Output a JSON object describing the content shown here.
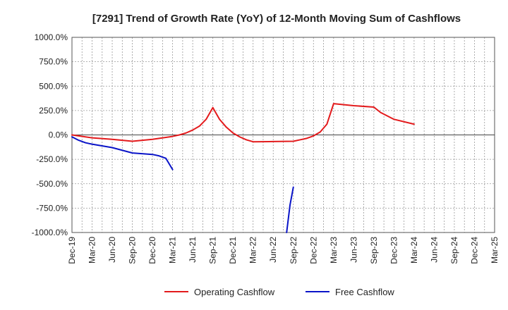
{
  "chart_data": {
    "type": "line",
    "title": "[7291]  Trend of Growth Rate (YoY) of 12-Month Moving Sum of Cashflows",
    "xlabel": "",
    "ylabel": "",
    "ylim": [
      -1000,
      1000
    ],
    "yticks": [
      1000,
      750,
      500,
      250,
      0,
      -250,
      -500,
      -750,
      -1000
    ],
    "ytick_labels": [
      "1000.0%",
      "750.0%",
      "500.0%",
      "250.0%",
      "0.0%",
      "-250.0%",
      "-500.0%",
      "-750.0%",
      "-1000.0%"
    ],
    "x_start": "2019-12",
    "x_end": "2025-03",
    "xtick_labels": [
      "Dec-19",
      "Mar-20",
      "Jun-20",
      "Sep-20",
      "Dec-20",
      "Mar-21",
      "Jun-21",
      "Sep-21",
      "Dec-21",
      "Mar-22",
      "Jun-22",
      "Sep-22",
      "Dec-22",
      "Mar-23",
      "Jun-23",
      "Sep-23",
      "Dec-23",
      "Mar-24",
      "Jun-24",
      "Sep-24",
      "Dec-24",
      "Mar-25"
    ],
    "grid": true,
    "legend_position": "bottom",
    "series": [
      {
        "name": "Operating Cashflow",
        "color": "#e31a1c",
        "points": [
          [
            "2019-12",
            0
          ],
          [
            "2020-01",
            -10
          ],
          [
            "2020-02",
            -20
          ],
          [
            "2020-03",
            -30
          ],
          [
            "2020-06",
            -45
          ],
          [
            "2020-09",
            -65
          ],
          [
            "2020-12",
            -45
          ],
          [
            "2021-03",
            -15
          ],
          [
            "2021-04",
            0
          ],
          [
            "2021-05",
            20
          ],
          [
            "2021-06",
            50
          ],
          [
            "2021-07",
            90
          ],
          [
            "2021-08",
            160
          ],
          [
            "2021-09",
            280
          ],
          [
            "2021-10",
            160
          ],
          [
            "2021-11",
            80
          ],
          [
            "2021-12",
            20
          ],
          [
            "2022-01",
            -20
          ],
          [
            "2022-02",
            -50
          ],
          [
            "2022-03",
            -70
          ],
          [
            "2022-06",
            -68
          ],
          [
            "2022-09",
            -65
          ],
          [
            "2022-10",
            -50
          ],
          [
            "2022-11",
            -35
          ],
          [
            "2022-12",
            -10
          ],
          [
            "2023-01",
            30
          ],
          [
            "2023-02",
            110
          ],
          [
            "2023-03",
            320
          ],
          [
            "2023-06",
            300
          ],
          [
            "2023-09",
            285
          ],
          [
            "2023-10",
            230
          ],
          [
            "2023-12",
            160
          ],
          [
            "2024-03",
            110
          ]
        ]
      },
      {
        "name": "Free Cashflow",
        "color": "#0a14c8",
        "segments": [
          [
            [
              "2019-12",
              -20
            ],
            [
              "2020-01",
              -55
            ],
            [
              "2020-02",
              -80
            ],
            [
              "2020-03",
              -95
            ],
            [
              "2020-06",
              -130
            ],
            [
              "2020-09",
              -185
            ],
            [
              "2020-12",
              -200
            ],
            [
              "2021-01",
              -215
            ],
            [
              "2021-02",
              -240
            ],
            [
              "2021-03",
              -355
            ]
          ],
          [
            [
              "2022-08",
              -1000
            ],
            [
              "2022-08.5",
              -720
            ],
            [
              "2022-09",
              -535
            ]
          ]
        ]
      }
    ]
  }
}
